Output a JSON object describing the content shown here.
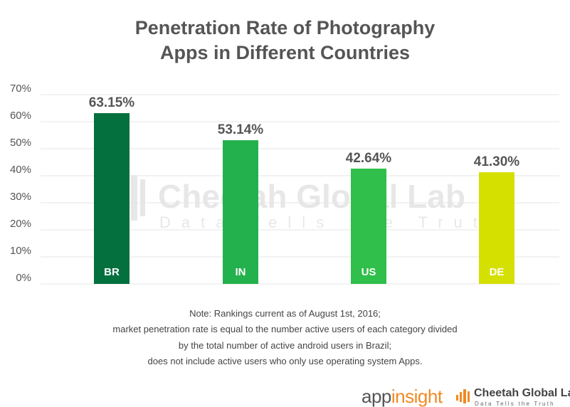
{
  "title_lines": [
    "Penetration Rate of Photography",
    "Apps in Different Countries"
  ],
  "chart_data": {
    "type": "bar",
    "title": "Penetration Rate of Photography Apps in Different Countries",
    "xlabel": "",
    "ylabel": "",
    "categories": [
      "BR",
      "IN",
      "US",
      "DE"
    ],
    "values": [
      63.15,
      53.14,
      42.64,
      41.3
    ],
    "value_labels": [
      "63.15%",
      "53.14%",
      "42.64%",
      "41.30%"
    ],
    "bar_colors": [
      "#04703d",
      "#23b14d",
      "#2fbf4a",
      "#d6e000"
    ],
    "y_ticks": [
      "0%",
      "10%",
      "20%",
      "30%",
      "40%",
      "50%",
      "60%",
      "70%"
    ],
    "ylim": [
      0,
      70
    ],
    "grid": true,
    "legend": "none"
  },
  "watermark": {
    "name": "Cheetah Global Lab",
    "tagline": "Data Tells the Truth"
  },
  "note_lines": [
    "Note: Rankings current as of August 1st, 2016;",
    "market penetration rate is equal to the number active users of each category divided",
    "by the total number of active android users in Brazil;",
    "does not include active users who only use operating system Apps."
  ],
  "logos": {
    "appinsight_part1": "app",
    "appinsight_part2": "insight",
    "cheetah_name": "Cheetah Global Lab",
    "cheetah_tagline": "Data Tells the Truth"
  },
  "colors": {
    "brand_orange": "#f08a24",
    "grid": "#e6e6e6",
    "text": "#555555"
  }
}
